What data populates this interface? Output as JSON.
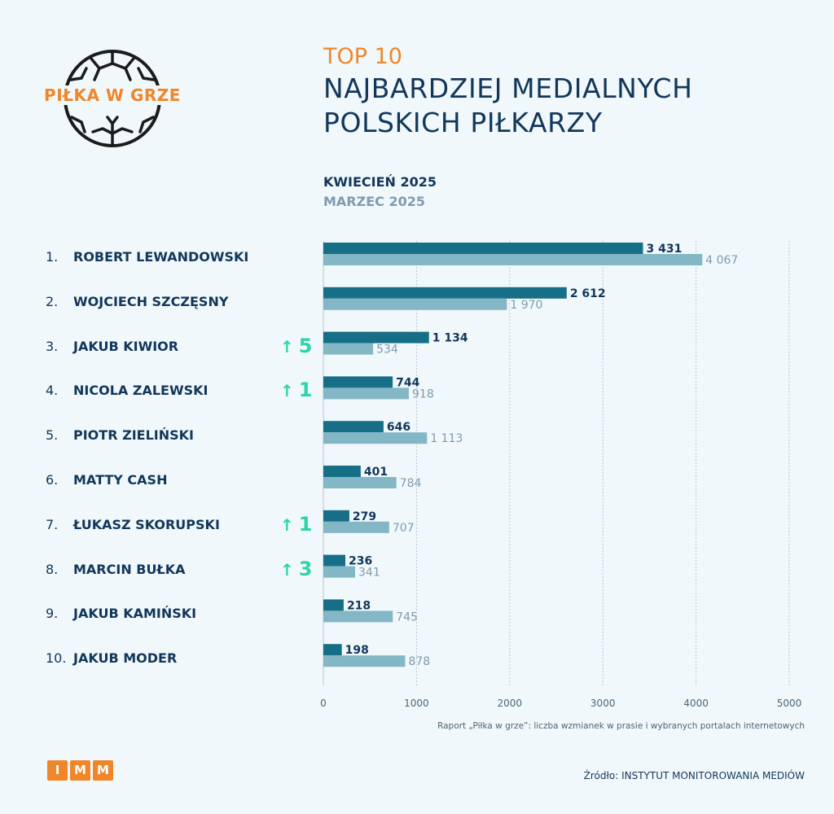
{
  "logo": {
    "text": "PIŁKA W GRZE",
    "icon": "football-icon"
  },
  "header": {
    "kicker": "TOP 10",
    "title_lines": [
      "NAJBARDZIEJ MEDIALNYCH",
      "POLSKICH PIŁKARZY"
    ]
  },
  "legend": {
    "current": "KWIECIEŃ 2025",
    "previous": "MARZEC 2025"
  },
  "colors": {
    "current": "#176f87",
    "previous": "#84b7c5",
    "accent": "#f0862a",
    "up": "#2ed4a8",
    "text": "#12375a"
  },
  "rows": [
    {
      "rank": "1.",
      "name": "ROBERT LEWANDOWSKI",
      "change": ""
    },
    {
      "rank": "2.",
      "name": "WOJCIECH SZCZĘSNY",
      "change": ""
    },
    {
      "rank": "3.",
      "name": "JAKUB KIWIOR",
      "change": "5"
    },
    {
      "rank": "4.",
      "name": "NICOLA ZALEWSKI",
      "change": "1"
    },
    {
      "rank": "5.",
      "name": "PIOTR ZIELIŃSKI",
      "change": ""
    },
    {
      "rank": "6.",
      "name": "MATTY CASH",
      "change": ""
    },
    {
      "rank": "7.",
      "name": "ŁUKASZ SKORUPSKI",
      "change": "1"
    },
    {
      "rank": "8.",
      "name": "MARCIN BUŁKA",
      "change": "3"
    },
    {
      "rank": "9.",
      "name": "JAKUB KAMIŃSKI",
      "change": ""
    },
    {
      "rank": "10.",
      "name": "JAKUB MODER",
      "change": ""
    }
  ],
  "chart_data": {
    "type": "bar",
    "orientation": "horizontal",
    "categories": [
      "ROBERT LEWANDOWSKI",
      "WOJCIECH SZCZĘSNY",
      "JAKUB KIWIOR",
      "NICOLA ZALEWSKI",
      "PIOTR ZIELIŃSKI",
      "MATTY CASH",
      "ŁUKASZ SKORUPSKI",
      "MARCIN BUŁKA",
      "JAKUB KAMIŃSKI",
      "JAKUB MODER"
    ],
    "series": [
      {
        "name": "KWIECIEŃ 2025",
        "values": [
          3431,
          2612,
          1134,
          744,
          646,
          401,
          279,
          236,
          218,
          198
        ],
        "labels": [
          "3 431",
          "2 612",
          "1 134",
          "744",
          "646",
          "401",
          "279",
          "236",
          "218",
          "198"
        ]
      },
      {
        "name": "MARZEC 2025",
        "values": [
          4067,
          1970,
          534,
          918,
          1113,
          784,
          707,
          341,
          745,
          878
        ],
        "labels": [
          "4 067",
          "1 970",
          "534",
          "918",
          "1 113",
          "784",
          "707",
          "341",
          "745",
          "878"
        ]
      }
    ],
    "xlim": [
      0,
      5000
    ],
    "xticks": [
      0,
      1000,
      2000,
      3000,
      4000,
      5000
    ],
    "xtick_labels": [
      "0",
      "1000",
      "2000",
      "3000",
      "4000",
      "5000"
    ],
    "grid": true
  },
  "footer": {
    "note": "Raport „Piłka w grze”: liczba wzmianek w prasie i wybranych portalach internetowych",
    "source": "Źródło: INSTYTUT MONITOROWANIA MEDIÓW",
    "imm_letters": [
      "I",
      "M",
      "M"
    ]
  }
}
